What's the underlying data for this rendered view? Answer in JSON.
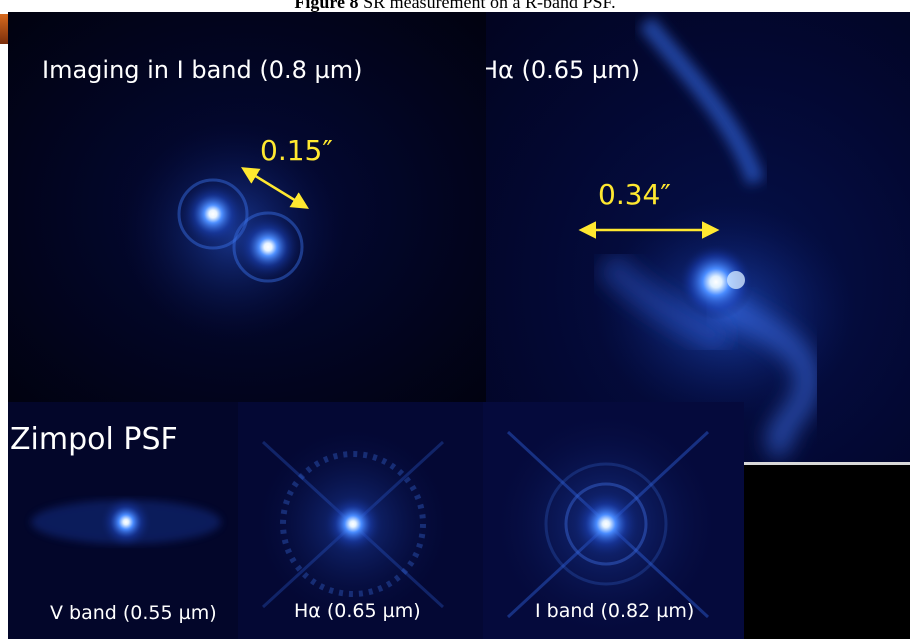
{
  "caption": {
    "figure_label": "Figure 8",
    "text": "SR measurement on a R-band PSF."
  },
  "panels": {
    "i_band": {
      "label": "Imaging in I band (0.8 µm)",
      "separation": "0.15″"
    },
    "halpha": {
      "label": "Hα (0.65 µm)",
      "separation": "0.34″"
    },
    "zimpol": {
      "title": "Zimpol PSF",
      "sub_panels": [
        {
          "label": "V band (0.55 µm)"
        },
        {
          "label": "Hα (0.65 µm)"
        },
        {
          "label": "I band (0.82 µm)"
        }
      ]
    }
  },
  "colors": {
    "text": "#ffffff",
    "annotation": "#ffe830",
    "glow": "#3c78ff",
    "core": "#ffffff"
  }
}
